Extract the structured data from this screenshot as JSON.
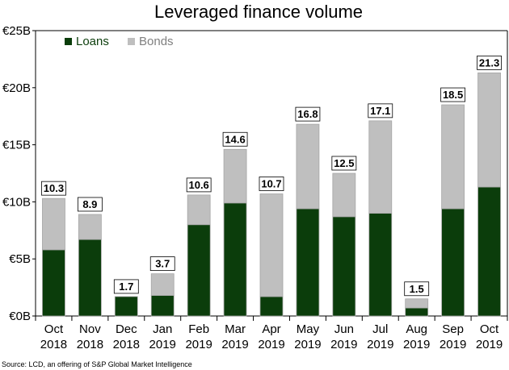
{
  "chart_data": {
    "type": "bar",
    "stacked": true,
    "title": "Leveraged finance volume",
    "categories": [
      [
        "Oct",
        "2018"
      ],
      [
        "Nov",
        "2018"
      ],
      [
        "Dec",
        "2018"
      ],
      [
        "Jan",
        "2019"
      ],
      [
        "Feb",
        "2019"
      ],
      [
        "Mar",
        "2019"
      ],
      [
        "Apr",
        "2019"
      ],
      [
        "May",
        "2019"
      ],
      [
        "Jun",
        "2019"
      ],
      [
        "Jul",
        "2019"
      ],
      [
        "Aug",
        "2019"
      ],
      [
        "Sep",
        "2019"
      ],
      [
        "Oct",
        "2019"
      ]
    ],
    "series": [
      {
        "name": "Loans",
        "color": "#0b3d0b",
        "values": [
          5.8,
          6.7,
          1.7,
          1.8,
          8.0,
          9.9,
          1.7,
          9.4,
          8.7,
          9.0,
          0.7,
          9.4,
          11.3
        ]
      },
      {
        "name": "Bonds",
        "color": "#bfbfbf",
        "values": [
          4.5,
          2.2,
          0.0,
          1.9,
          2.6,
          4.7,
          9.0,
          7.4,
          3.8,
          8.1,
          0.8,
          9.1,
          10.0
        ]
      }
    ],
    "totals": [
      "10.3",
      "8.9",
      "1.7",
      "3.7",
      "10.6",
      "14.6",
      "10.7",
      "16.8",
      "12.5",
      "17.1",
      "1.5",
      "18.5",
      "21.3"
    ],
    "ylim": [
      0,
      25
    ],
    "yticks": [
      0,
      5,
      10,
      15,
      20,
      25
    ],
    "ytick_labels": [
      "€0B",
      "€5B",
      "€10B",
      "€15B",
      "€20B",
      "€25B"
    ],
    "xlabel": "",
    "ylabel": "",
    "legend": "top-left",
    "grid": false
  },
  "source": "Source: LCD, an offering of S&P Global Market Intelligence"
}
